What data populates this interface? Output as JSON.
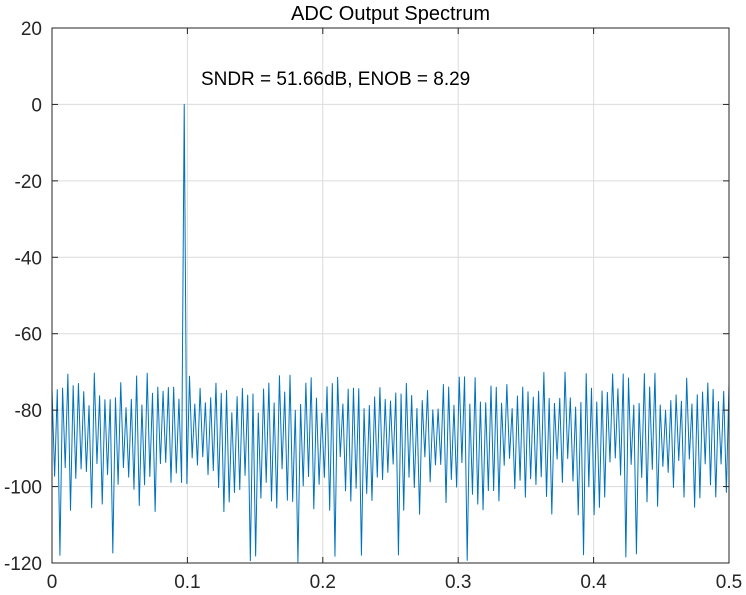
{
  "chart_data": {
    "type": "line",
    "title": "ADC Output Spectrum",
    "xlabel": "",
    "ylabel": "",
    "xlim": [
      0,
      0.5
    ],
    "ylim": [
      -120,
      20
    ],
    "xticks": [
      0,
      0.1,
      0.2,
      0.3,
      0.4,
      0.5
    ],
    "xtick_labels": [
      "0",
      "0.1",
      "0.2",
      "0.3",
      "0.4",
      "0.5"
    ],
    "yticks": [
      -120,
      -100,
      -80,
      -60,
      -40,
      -20,
      0,
      20
    ],
    "ytick_labels": [
      "-120",
      "-100",
      "-80",
      "-60",
      "-40",
      "-20",
      "0",
      "20"
    ],
    "grid": true,
    "annotation": {
      "text": "SNDR = 51.66dB, ENOB = 8.29",
      "x": 0.11,
      "y": 4
    },
    "series": [
      {
        "color": "#0072bd",
        "fundamental": {
          "x": 0.0977,
          "y": 0
        },
        "bin_spacing": 0.0019531,
        "noise_floor_mean": -89,
        "noise_peak_level": -71,
        "noise_trough_level": -120
      }
    ]
  }
}
